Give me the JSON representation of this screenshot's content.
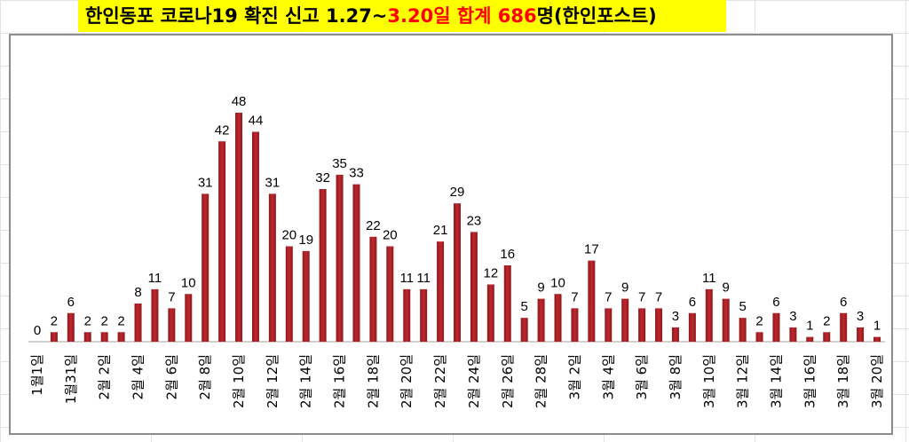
{
  "title": {
    "part1": "한인동포 코로나19 확진 신고 1.27~",
    "part2": "3.20일 합계 686",
    "part3": "명(한인포스트)"
  },
  "colors": {
    "bar": "#c0272d",
    "bar_dark": "#8b1a1f",
    "title_bg": "#ffff00",
    "title_red": "#ff0000"
  },
  "chart_data": {
    "type": "bar",
    "title": "한인동포 코로나19 확진 신고 1.27~3.20일 합계 686명(한인포스트)",
    "xlabel": "",
    "ylabel": "",
    "ylim": [
      0,
      48
    ],
    "grid": false,
    "legend": "none",
    "categories": [
      "1월1일",
      "",
      "1월31일",
      "",
      "2월 2일",
      "",
      "2월 4일",
      "",
      "2월 6일",
      "",
      "2월 8일",
      "",
      "2월 10일",
      "",
      "2월 12일",
      "",
      "2월 14일",
      "",
      "2월 16일",
      "",
      "2월 18일",
      "",
      "2월 20일",
      "",
      "2월 22일",
      "",
      "2월 24일",
      "",
      "2월 26일",
      "",
      "2월 28일",
      "",
      "3월 2일",
      "",
      "3월 4일",
      "",
      "3월 6일",
      "",
      "3월 8일",
      "",
      "3월 10일",
      "",
      "3월 12일",
      "",
      "3월 14일",
      "",
      "3월 16일",
      "",
      "3월 18일",
      "",
      "3월 20일"
    ],
    "values": [
      0,
      2,
      6,
      2,
      2,
      2,
      8,
      11,
      7,
      10,
      31,
      42,
      48,
      44,
      31,
      20,
      19,
      32,
      35,
      33,
      22,
      20,
      11,
      11,
      21,
      29,
      23,
      12,
      16,
      5,
      9,
      10,
      7,
      17,
      7,
      9,
      7,
      7,
      3,
      6,
      11,
      9,
      5,
      2,
      6,
      3,
      1,
      2,
      6,
      3,
      1
    ]
  }
}
